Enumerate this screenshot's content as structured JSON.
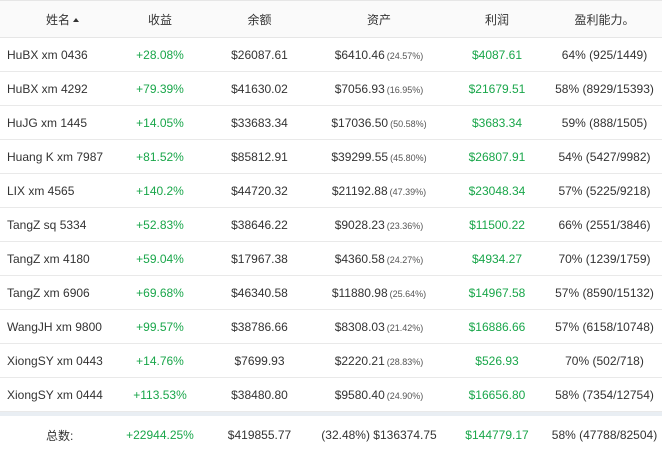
{
  "headers": {
    "name": "姓名",
    "profit": "收益",
    "balance": "余额",
    "asset": "资产",
    "earnings": "利润",
    "win_rate": "盈利能力。"
  },
  "rows": [
    {
      "name": "HuBX xm 0436",
      "profit": "+28.08%",
      "balance": "$26087.61",
      "asset": "$6410.46",
      "asset_pct": "(24.57%)",
      "earnings": "$4087.61",
      "win_rate": "64% (925/1449)"
    },
    {
      "name": "HuBX xm 4292",
      "profit": "+79.39%",
      "balance": "$41630.02",
      "asset": "$7056.93",
      "asset_pct": "(16.95%)",
      "earnings": "$21679.51",
      "win_rate": "58% (8929/15393)"
    },
    {
      "name": "HuJG xm 1445",
      "profit": "+14.05%",
      "balance": "$33683.34",
      "asset": "$17036.50",
      "asset_pct": "(50.58%)",
      "earnings": "$3683.34",
      "win_rate": "59% (888/1505)"
    },
    {
      "name": "Huang K xm 7987",
      "profit": "+81.52%",
      "balance": "$85812.91",
      "asset": "$39299.55",
      "asset_pct": "(45.80%)",
      "earnings": "$26807.91",
      "win_rate": "54% (5427/9982)"
    },
    {
      "name": "LIX xm 4565",
      "profit": "+140.2%",
      "balance": "$44720.32",
      "asset": "$21192.88",
      "asset_pct": "(47.39%)",
      "earnings": "$23048.34",
      "win_rate": "57% (5225/9218)"
    },
    {
      "name": "TangZ sq 5334",
      "profit": "+52.83%",
      "balance": "$38646.22",
      "asset": "$9028.23",
      "asset_pct": "(23.36%)",
      "earnings": "$11500.22",
      "win_rate": "66% (2551/3846)"
    },
    {
      "name": "TangZ xm 4180",
      "profit": "+59.04%",
      "balance": "$17967.38",
      "asset": "$4360.58",
      "asset_pct": "(24.27%)",
      "earnings": "$4934.27",
      "win_rate": "70% (1239/1759)"
    },
    {
      "name": "TangZ xm 6906",
      "profit": "+69.68%",
      "balance": "$46340.58",
      "asset": "$11880.98",
      "asset_pct": "(25.64%)",
      "earnings": "$14967.58",
      "win_rate": "57% (8590/15132)"
    },
    {
      "name": "WangJH xm 9800",
      "profit": "+99.57%",
      "balance": "$38786.66",
      "asset": "$8308.03",
      "asset_pct": "(21.42%)",
      "earnings": "$16886.66",
      "win_rate": "57% (6158/10748)"
    },
    {
      "name": "XiongSY xm 0443",
      "profit": "+14.76%",
      "balance": "$7699.93",
      "asset": "$2220.21",
      "asset_pct": "(28.83%)",
      "earnings": "$526.93",
      "win_rate": "70% (502/718)"
    },
    {
      "name": "XiongSY xm 0444",
      "profit": "+113.53%",
      "balance": "$38480.80",
      "asset": "$9580.40",
      "asset_pct": "(24.90%)",
      "earnings": "$16656.80",
      "win_rate": "58% (7354/12754)"
    }
  ],
  "total": {
    "label": "总数:",
    "profit": "+22944.25%",
    "balance": "$419855.77",
    "asset": "(32.48%) $136374.75",
    "earnings": "$144779.17",
    "win_rate": "58% (47788/82504)"
  },
  "colors": {
    "positive": "#19a64a",
    "header_bg": "#fafafa",
    "border": "#e9e9e9"
  }
}
